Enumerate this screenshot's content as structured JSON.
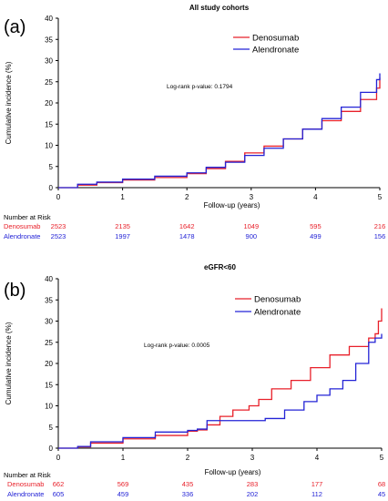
{
  "colors": {
    "denosumab": "#e8202a",
    "alendronate": "#2323d6",
    "axis": "#000000"
  },
  "chart_data": [
    {
      "type": "line",
      "panel_label": "(a)",
      "title": "All study cohorts",
      "xlabel": "Follow-up  (years)",
      "ylabel": "Cumulative incidence (%)",
      "xlim": [
        0,
        5
      ],
      "ylim": [
        0,
        40
      ],
      "x_ticks": [
        "0",
        "1",
        "2",
        "3",
        "4",
        "5"
      ],
      "y_ticks": [
        "0",
        "5",
        "10",
        "15",
        "20",
        "25",
        "30",
        "35",
        "40"
      ],
      "annotation": "Log-rank p-value: 0.1794",
      "legend_position": "top-right",
      "grid": false,
      "series": [
        {
          "name": "Denosumab",
          "color_key": "denosumab",
          "points": [
            [
              0,
              0
            ],
            [
              0.3,
              0.6
            ],
            [
              0.6,
              1.2
            ],
            [
              1,
              1.8
            ],
            [
              1.5,
              2.4
            ],
            [
              2,
              3.3
            ],
            [
              2.3,
              4.5
            ],
            [
              2.6,
              6.2
            ],
            [
              2.9,
              8.2
            ],
            [
              3.2,
              9.8
            ],
            [
              3.5,
              11.5
            ],
            [
              3.8,
              13.8
            ],
            [
              4.1,
              15.8
            ],
            [
              4.4,
              18
            ],
            [
              4.7,
              20.8
            ],
            [
              4.95,
              23.5
            ],
            [
              5,
              26
            ]
          ]
        },
        {
          "name": "Alendronate",
          "color_key": "alendronate",
          "points": [
            [
              0,
              0
            ],
            [
              0.3,
              0.8
            ],
            [
              0.6,
              1.3
            ],
            [
              1,
              2
            ],
            [
              1.5,
              2.7
            ],
            [
              2,
              3.5
            ],
            [
              2.3,
              4.8
            ],
            [
              2.6,
              6
            ],
            [
              2.9,
              7.6
            ],
            [
              3.2,
              9.3
            ],
            [
              3.5,
              11.5
            ],
            [
              3.8,
              13.8
            ],
            [
              4.1,
              16.3
            ],
            [
              4.4,
              19
            ],
            [
              4.7,
              22.5
            ],
            [
              4.95,
              25.5
            ],
            [
              5,
              27
            ]
          ]
        }
      ],
      "risk_table": {
        "title": "Number at Risk",
        "rows": [
          {
            "name": "Denosumab",
            "color_key": "denosumab",
            "values": [
              "2523",
              "2135",
              "1642",
              "1049",
              "595",
              "216"
            ]
          },
          {
            "name": "Alendronate",
            "color_key": "alendronate",
            "values": [
              "2523",
              "1997",
              "1478",
              "900",
              "499",
              "156"
            ]
          }
        ]
      }
    },
    {
      "type": "line",
      "panel_label": "(b)",
      "title": "eGFR<60",
      "xlabel": "Follow-up  (years)",
      "ylabel": "Cumulative incidence (%)",
      "xlim": [
        0,
        5
      ],
      "ylim": [
        0,
        40
      ],
      "x_ticks": [
        "0",
        "1",
        "2",
        "3",
        "4",
        "5"
      ],
      "y_ticks": [
        "0",
        "5",
        "10",
        "15",
        "20",
        "25",
        "30",
        "35",
        "40"
      ],
      "annotation": "Log-rank p-value: 0.0005",
      "legend_position": "top-right",
      "grid": false,
      "series": [
        {
          "name": "Denosumab",
          "color_key": "denosumab",
          "points": [
            [
              0,
              0
            ],
            [
              0.3,
              0.3
            ],
            [
              0.5,
              1.2
            ],
            [
              1,
              2.2
            ],
            [
              1.5,
              3
            ],
            [
              2,
              4
            ],
            [
              2.15,
              4.3
            ],
            [
              2.3,
              5.5
            ],
            [
              2.5,
              7.5
            ],
            [
              2.7,
              9
            ],
            [
              2.95,
              10
            ],
            [
              3.1,
              11.5
            ],
            [
              3.3,
              14
            ],
            [
              3.6,
              16
            ],
            [
              3.9,
              19
            ],
            [
              4.2,
              22
            ],
            [
              4.5,
              24
            ],
            [
              4.8,
              26
            ],
            [
              4.9,
              27
            ],
            [
              4.95,
              30
            ],
            [
              5,
              33
            ]
          ]
        },
        {
          "name": "Alendronate",
          "color_key": "alendronate",
          "points": [
            [
              0,
              0
            ],
            [
              0.3,
              0.4
            ],
            [
              0.5,
              1.5
            ],
            [
              1,
              2.5
            ],
            [
              1.5,
              3.8
            ],
            [
              2,
              4.2
            ],
            [
              2.15,
              4.5
            ],
            [
              2.3,
              6.5
            ],
            [
              2.5,
              6.5
            ],
            [
              2.95,
              6.5
            ],
            [
              3.2,
              7
            ],
            [
              3.5,
              9
            ],
            [
              3.8,
              11
            ],
            [
              4,
              12.5
            ],
            [
              4.2,
              14
            ],
            [
              4.4,
              16
            ],
            [
              4.6,
              20
            ],
            [
              4.8,
              25
            ],
            [
              4.9,
              26
            ],
            [
              5,
              27
            ]
          ]
        }
      ],
      "risk_table": {
        "title": "Number at Risk",
        "rows": [
          {
            "name": "Denosumab",
            "color_key": "denosumab",
            "values": [
              "662",
              "569",
              "435",
              "283",
              "177",
              "68"
            ]
          },
          {
            "name": "Alendronate",
            "color_key": "alendronate",
            "values": [
              "605",
              "459",
              "336",
              "202",
              "112",
              "45"
            ]
          }
        ]
      }
    }
  ]
}
